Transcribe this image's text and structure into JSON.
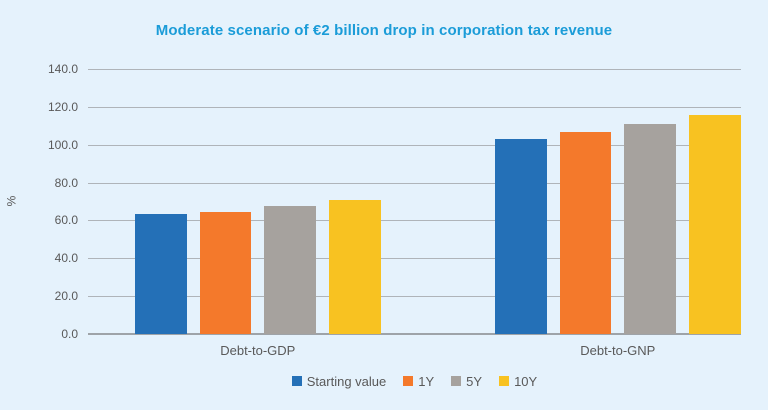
{
  "figure": {
    "background_color": "#E5F2FC"
  },
  "chart_data": {
    "type": "bar",
    "title": "Moderate scenario of €2 billion drop in corporation tax revenue",
    "title_color": "#1B9CD8",
    "ylabel": "%",
    "ylim": [
      0,
      140
    ],
    "ytick_step": 20,
    "ytick_labels": [
      "140.0",
      "120.0",
      "100.0",
      "80.0",
      "60.0",
      "40.0",
      "20.0",
      "0.0"
    ],
    "grid": true,
    "legend_position": "bottom",
    "categories": [
      "Debt-to-GDP",
      "Debt-to-GNP"
    ],
    "series": [
      {
        "name": "Starting value",
        "color": "#2470B7",
        "values": [
          63.5,
          103.0
        ]
      },
      {
        "name": "1Y",
        "color": "#F4792B",
        "values": [
          64.5,
          106.5
        ]
      },
      {
        "name": "5Y",
        "color": "#A6A29E",
        "values": [
          67.5,
          111.0
        ]
      },
      {
        "name": "10Y",
        "color": "#F8C221",
        "values": [
          71.0,
          115.5
        ]
      }
    ],
    "axis_text_color": "#595959",
    "gridline_color": "#AFB4B9",
    "axis_line_color": "#9EA3A8"
  }
}
